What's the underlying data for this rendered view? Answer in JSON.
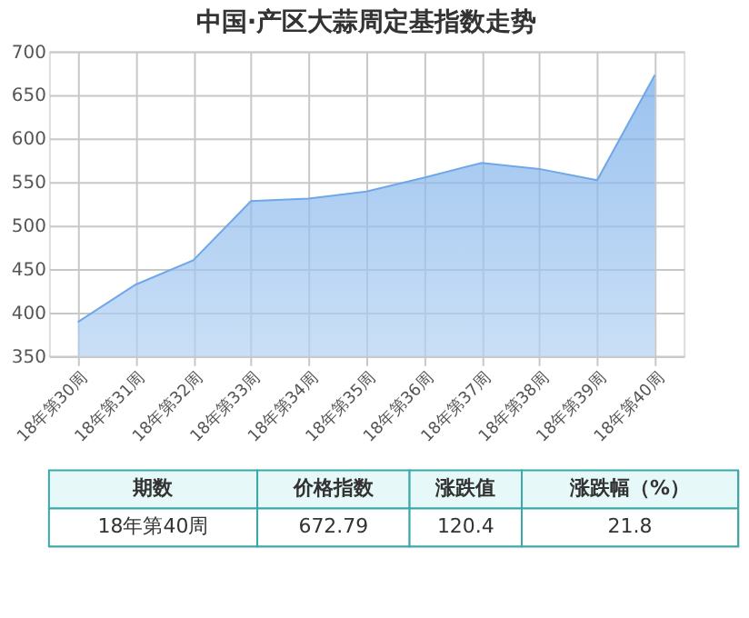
{
  "chart_data": {
    "type": "area",
    "title": "中国·产区大蒜周定基指数走势",
    "categories": [
      "18年第30周",
      "18年第31周",
      "18年第32周",
      "18年第33周",
      "18年第34周",
      "18年第35周",
      "18年第36周",
      "18年第37周",
      "18年第38周",
      "18年第39周",
      "18年第40周"
    ],
    "series": [
      {
        "color": "#6fa8e8",
        "values": [
          389,
          432,
          460,
          528,
          531,
          539,
          555,
          572,
          565,
          552,
          673
        ]
      }
    ],
    "ylim": [
      350,
      700
    ],
    "yticks": [
      350,
      400,
      450,
      500,
      550,
      600,
      650,
      700
    ],
    "grid": true,
    "marker": "none",
    "annotations": [
      "期数",
      "价格指数",
      "涨跌值",
      "涨跌幅（%）",
      "18年第40周",
      "672.79",
      "120.4",
      "21.8"
    ]
  }
}
